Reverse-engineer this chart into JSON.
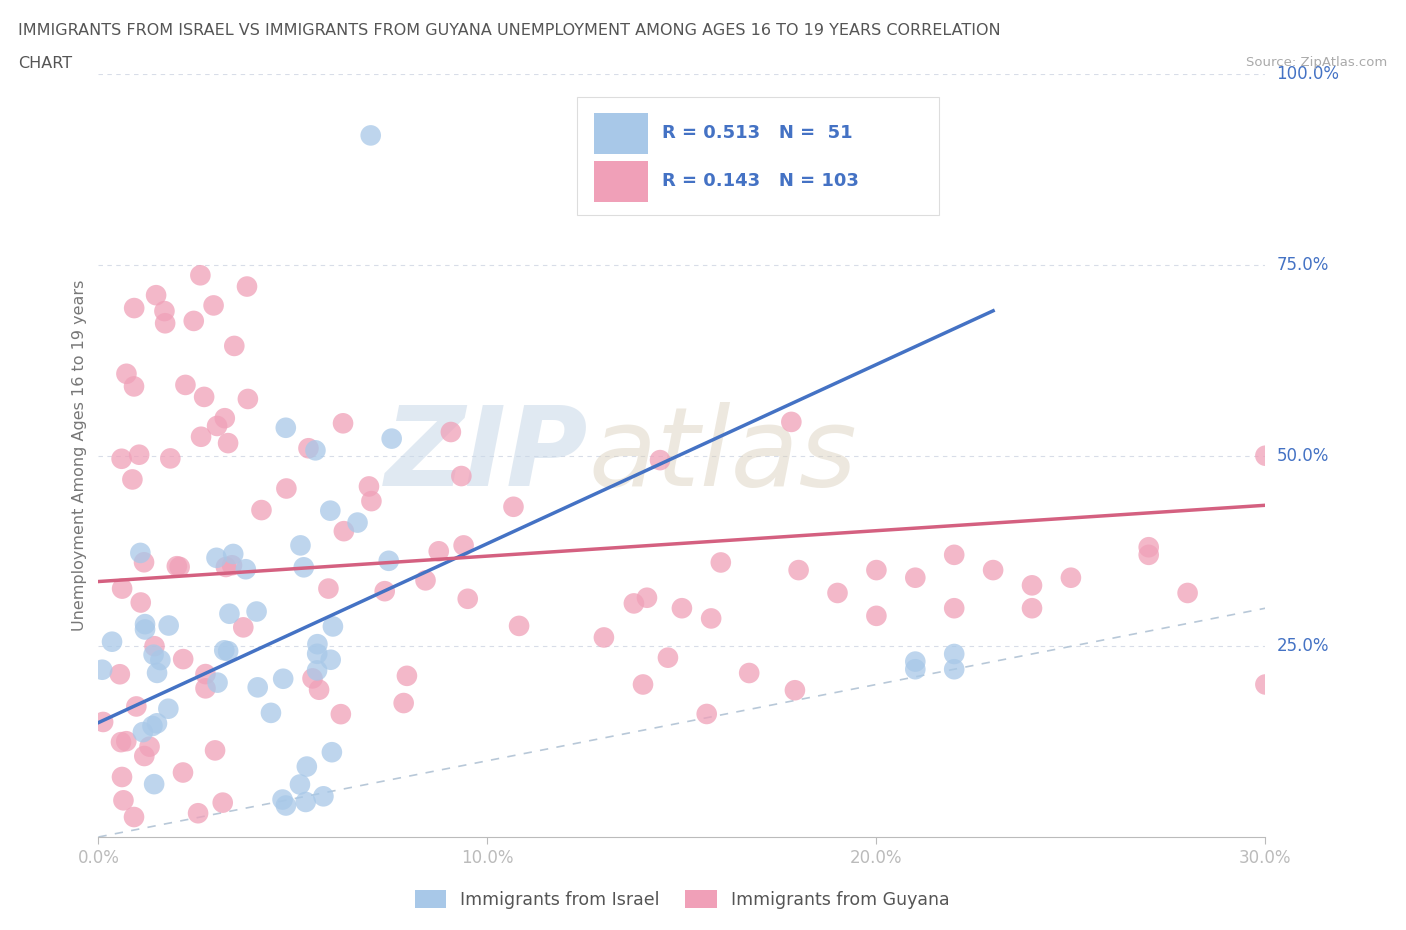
{
  "title_line1": "IMMIGRANTS FROM ISRAEL VS IMMIGRANTS FROM GUYANA UNEMPLOYMENT AMONG AGES 16 TO 19 YEARS CORRELATION",
  "title_line2": "CHART",
  "source": "Source: ZipAtlas.com",
  "ylabel": "Unemployment Among Ages 16 to 19 years",
  "xlim": [
    0.0,
    0.3
  ],
  "ylim": [
    0.0,
    1.0
  ],
  "xtick_labels": [
    "0.0%",
    "10.0%",
    "20.0%",
    "30.0%"
  ],
  "xtick_values": [
    0.0,
    0.1,
    0.2,
    0.3
  ],
  "ytick_labels": [
    "100.0%",
    "75.0%",
    "50.0%",
    "25.0%"
  ],
  "ytick_values": [
    1.0,
    0.75,
    0.5,
    0.25
  ],
  "israel_R": 0.513,
  "israel_N": 51,
  "guyana_R": 0.143,
  "guyana_N": 103,
  "israel_color": "#a8c8e8",
  "guyana_color": "#f0a0b8",
  "israel_line_color": "#4472c4",
  "guyana_line_color": "#d46080",
  "ref_line_color": "#b8c8d8",
  "grid_color": "#d8dde8",
  "background_color": "#ffffff",
  "legend_label_israel": "Immigrants from Israel",
  "legend_label_guyana": "Immigrants from Guyana",
  "israel_trend_x0": 0.0,
  "israel_trend_y0": 0.15,
  "israel_trend_x1": 0.23,
  "israel_trend_y1": 0.69,
  "guyana_trend_x0": 0.0,
  "guyana_trend_y0": 0.335,
  "guyana_trend_x1": 0.3,
  "guyana_trend_y1": 0.435
}
